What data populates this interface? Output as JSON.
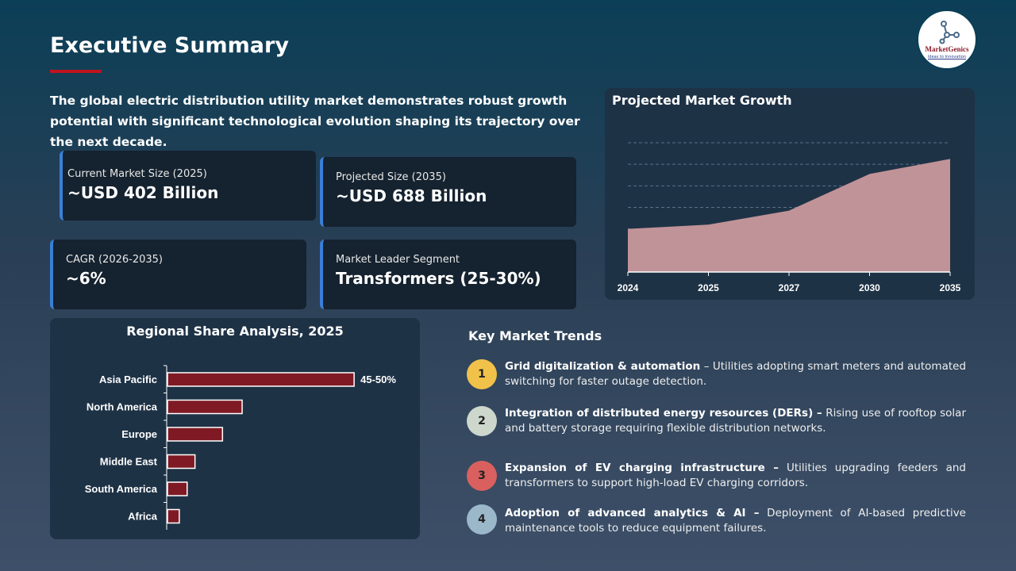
{
  "title": "Executive Summary",
  "logo": {
    "name": "MarketGenics",
    "tagline": "Ideas to Innovation"
  },
  "intro": "The global electric distribution utility market demonstrates robust growth potential with significant technological evolution shaping its trajectory over the next decade.",
  "cards": [
    {
      "label": "Current Market Size (2025)",
      "value": "~USD 402 Billion"
    },
    {
      "label": "Projected Size (2035)",
      "value": "~USD 688 Billion"
    },
    {
      "label": "CAGR (2026-2035)",
      "value": "~6%"
    },
    {
      "label": "Market Leader Segment",
      "value": "Transformers (25-30%)"
    }
  ],
  "colors": {
    "accent": "#c0141e",
    "card_border": "#3a7fd6",
    "area": "#c09398",
    "bar": "#7f1a24"
  },
  "chart_data": [
    {
      "type": "area",
      "title": "Projected Market Growth",
      "categories": [
        "2024",
        "2025",
        "2027",
        "2030",
        "2035"
      ],
      "values": [
        2.0,
        2.2,
        2.85,
        4.55,
        5.25
      ],
      "ylim": [
        0,
        6
      ],
      "grid": true,
      "axis_labels_y": false
    },
    {
      "type": "bar",
      "orientation": "horizontal",
      "title": "Regional Share Analysis, 2025",
      "categories": [
        "Asia Pacific",
        "North America",
        "Europe",
        "Middle East",
        "South America",
        "Africa"
      ],
      "values": [
        47.5,
        19,
        14,
        7,
        5,
        3
      ],
      "data_labels": [
        "45-50%",
        "",
        "",
        "",
        "",
        ""
      ],
      "unit": "%"
    }
  ],
  "trends": {
    "title": "Key Market Trends",
    "items": [
      {
        "num": "1",
        "color": "#f0c24a",
        "head": "Grid digitalization & automation",
        "body": " – Utilities adopting smart meters and automated switching for faster outage detection."
      },
      {
        "num": "2",
        "color": "#cdd7cc",
        "head": "Integration of distributed energy resources (DERs) –",
        "body": " Rising use of rooftop solar and battery storage requiring flexible distribution networks."
      },
      {
        "num": "3",
        "color": "#d9605f",
        "head": "Expansion of EV charging infrastructure –",
        "body": " Utilities upgrading feeders and transformers to support high-load EV charging corridors."
      },
      {
        "num": "4",
        "color": "#9bb8cb",
        "head": "Adoption of advanced analytics & AI –",
        "body": " Deployment of AI-based predictive maintenance tools to reduce equipment failures."
      }
    ]
  }
}
